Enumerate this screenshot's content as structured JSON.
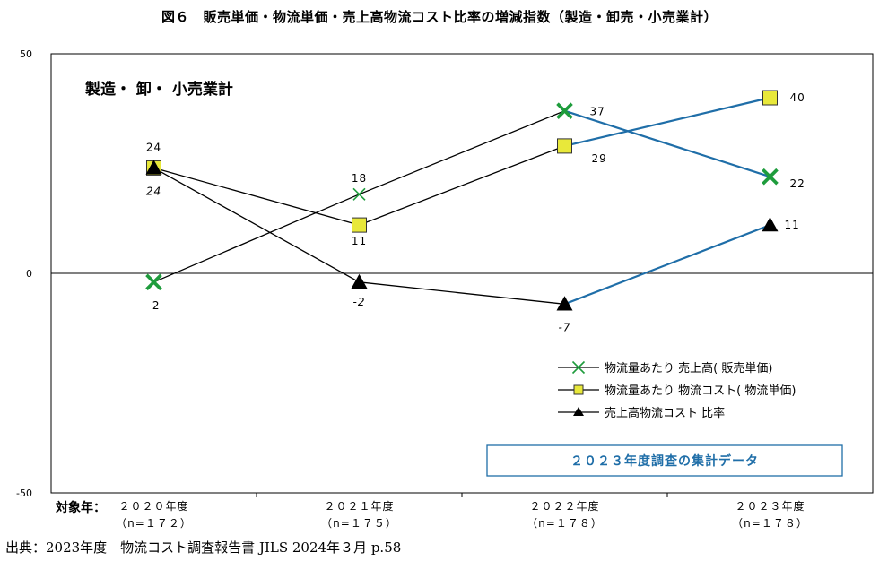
{
  "title": "図６　販売単価・物流単価・売上高物流コスト比率の増減指数（製造・卸売・小売業計）",
  "source": "出典：2023年度　物流コスト調査報告書 JILS 2024年３月 p.58",
  "chart_data": {
    "type": "line",
    "subtitle": "製造・ 卸・ 小売業計",
    "x_prefix": "対象年：",
    "categories": [
      "２０２０年度",
      "２０２１年度",
      "２０２２年度",
      "２０２３年度"
    ],
    "category_notes": [
      "（n=１７２）",
      "（n=１７５）",
      "（n=１７８）",
      "（n=１７８）"
    ],
    "ylim": [
      -50,
      50
    ],
    "yticks": [
      50,
      0,
      -50
    ],
    "highlight_from_category": 2,
    "highlight_color": "#1f6ea8",
    "banner": "２０２３年度調査の集計データ",
    "series": [
      {
        "name": "物流量あたり 売上高( 販売単価)",
        "marker": "x",
        "color": "#1e9c3c",
        "values": [
          -2,
          18,
          37,
          22
        ],
        "labels": [
          "-2",
          "18",
          "37",
          "22"
        ],
        "label_italic": [
          false,
          false,
          false,
          false
        ]
      },
      {
        "name": "物流量あたり 物流コスト( 物流単価)",
        "marker": "square",
        "color": "#e8e83a",
        "values": [
          24,
          11,
          29,
          40
        ],
        "labels": [
          "24",
          "11",
          "29",
          "40"
        ],
        "label_italic": [
          false,
          false,
          false,
          false
        ]
      },
      {
        "name": "売上高物流コスト 比率",
        "marker": "triangle",
        "color": "#000000",
        "values": [
          24,
          -2,
          -7,
          11
        ],
        "labels": [
          "24",
          "-2",
          "-7",
          "11"
        ],
        "label_italic": [
          true,
          true,
          true,
          false
        ]
      }
    ]
  }
}
